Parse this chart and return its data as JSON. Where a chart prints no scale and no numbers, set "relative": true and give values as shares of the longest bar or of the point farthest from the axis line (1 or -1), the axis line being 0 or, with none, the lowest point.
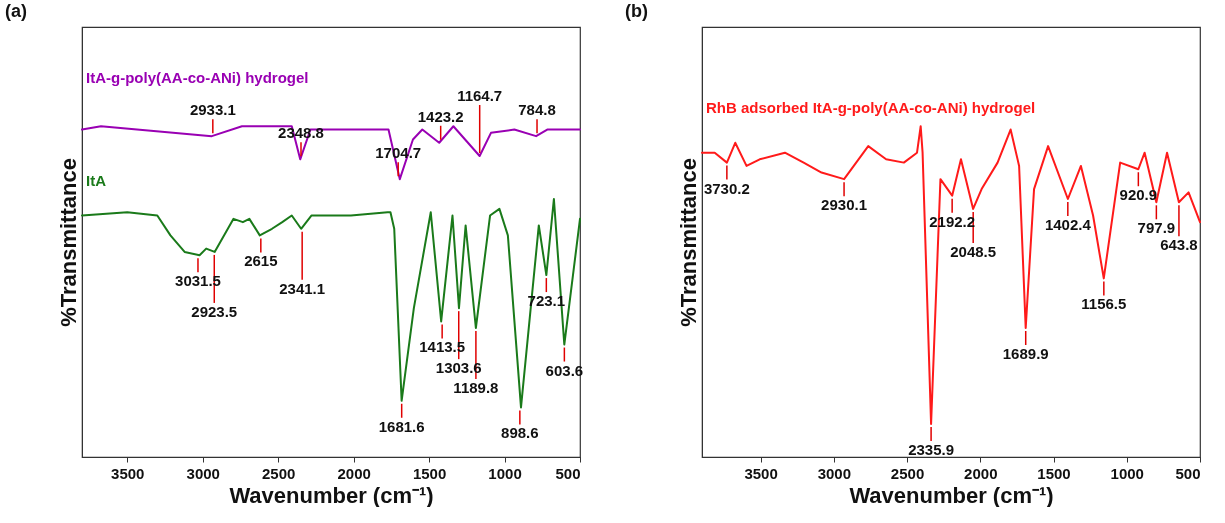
{
  "chart_data": [
    {
      "type": "line",
      "title": "(a)",
      "xlabel": "Wavenumber (cm⁻¹)",
      "ylabel": "%Transmittance",
      "relative": true,
      "tick_labels": "x",
      "xlim": [
        3800,
        500
      ],
      "xticks": [
        3500,
        3000,
        2500,
        2000,
        1500,
        1000,
        500
      ],
      "series": [
        {
          "name": "ItA-g-poly(AA-co-ANi) hydrogel",
          "color": "#9900b3",
          "x": [
            3800,
            3674,
            2940,
            2740,
            2410,
            2354,
            2286,
            1806,
            1769,
            1694,
            1607,
            1545,
            1433,
            1339,
            1165,
            1090,
            935,
            791,
            717,
            500
          ],
          "values": [
            0.99,
            1,
            0.97,
            1,
            1,
            0.9,
            0.99,
            0.99,
            0.99,
            0.84,
            0.96,
            0.99,
            0.95,
            1,
            0.91,
            0.98,
            0.99,
            0.97,
            0.99,
            0.99
          ]
        },
        {
          "name": "ItA",
          "color": "#1a7a1a",
          "x": [
            3800,
            3500,
            3301,
            3214,
            3120,
            3021,
            2977,
            2921,
            2796,
            2734,
            2691,
            2622,
            2541,
            2473,
            2410,
            2348,
            2280,
            2018,
            1775,
            1756,
            1731,
            1682,
            1601,
            1489,
            1420,
            1345,
            1302,
            1258,
            1190,
            1096,
            1034,
            978,
            891,
            773,
            723,
            673,
            604,
            500
          ],
          "values": [
            0.73,
            0.74,
            0.73,
            0.67,
            0.62,
            0.61,
            0.63,
            0.62,
            0.72,
            0.71,
            0.72,
            0.67,
            0.69,
            0.71,
            0.73,
            0.69,
            0.73,
            0.73,
            0.74,
            0.74,
            0.69,
            0.17,
            0.45,
            0.74,
            0.41,
            0.73,
            0.45,
            0.7,
            0.39,
            0.73,
            0.75,
            0.67,
            0.15,
            0.7,
            0.55,
            0.78,
            0.34,
            0.72
          ]
        }
      ],
      "annotations": [
        {
          "text": "2933.1",
          "x": 2933.1,
          "y": 0.97
        },
        {
          "text": "2348.8",
          "x": 2348.8,
          "y": 0.9
        },
        {
          "text": "1704.7",
          "x": 1704.7,
          "y": 0.84
        },
        {
          "text": "1423.2",
          "x": 1423.2,
          "y": 0.95
        },
        {
          "text": "1164.7",
          "x": 1164.7,
          "y": 0.91
        },
        {
          "text": "784.8",
          "x": 784.8,
          "y": 0.97
        },
        {
          "text": "3031.5",
          "x": 3031.5,
          "y": 0.61
        },
        {
          "text": "2923.5",
          "x": 2923.5,
          "y": 0.62
        },
        {
          "text": "2615",
          "x": 2615,
          "y": 0.67
        },
        {
          "text": "2341.1",
          "x": 2341.1,
          "y": 0.69
        },
        {
          "text": "1681.6",
          "x": 1681.6,
          "y": 0.17
        },
        {
          "text": "1413.5",
          "x": 1413.5,
          "y": 0.41
        },
        {
          "text": "1303.6",
          "x": 1303.6,
          "y": 0.45
        },
        {
          "text": "1189.8",
          "x": 1189.8,
          "y": 0.39
        },
        {
          "text": "898.6",
          "x": 898.6,
          "y": 0.15
        },
        {
          "text": "723.1",
          "x": 723.1,
          "y": 0.55
        },
        {
          "text": "603.6",
          "x": 603.6,
          "y": 0.34
        }
      ]
    },
    {
      "type": "line",
      "title": "(b)",
      "xlabel": "Wavenumber (cm⁻¹)",
      "ylabel": "%Transmittance",
      "relative": true,
      "tick_labels": "x",
      "xlim": [
        3900,
        500
      ],
      "xticks": [
        3500,
        3000,
        2500,
        2000,
        1500,
        1000,
        500
      ],
      "series": [
        {
          "name": "RhB adsorbed ItA-g-poly(AA-co-ANi) hydrogel",
          "color": "#ff1a1a",
          "x": [
            3900,
            3813,
            3730,
            3673,
            3596,
            3506,
            3334,
            3206,
            3084,
            2930,
            2765,
            2643,
            2522,
            2432,
            2407,
            2394,
            2336,
            2272,
            2192,
            2132,
            2049,
            1991,
            1882,
            1793,
            1735,
            1690,
            1633,
            1537,
            1402,
            1313,
            1230,
            1157,
            1045,
            921,
            878,
            798,
            725,
            644,
            578,
            500
          ],
          "values": [
            0.92,
            0.92,
            0.89,
            0.95,
            0.88,
            0.9,
            0.92,
            0.89,
            0.86,
            0.84,
            0.94,
            0.9,
            0.89,
            0.92,
            1,
            0.92,
            0.1,
            0.84,
            0.79,
            0.9,
            0.75,
            0.81,
            0.89,
            0.99,
            0.88,
            0.39,
            0.81,
            0.94,
            0.78,
            0.88,
            0.73,
            0.54,
            0.89,
            0.87,
            0.92,
            0.77,
            0.92,
            0.77,
            0.8,
            0.71
          ]
        }
      ],
      "annotations": [
        {
          "text": "3730.2",
          "x": 3730.2,
          "y": 0.89
        },
        {
          "text": "2930.1",
          "x": 2930.1,
          "y": 0.84
        },
        {
          "text": "2335.9",
          "x": 2335.9,
          "y": 0.1
        },
        {
          "text": "2192.2",
          "x": 2192.2,
          "y": 0.79
        },
        {
          "text": "2048.5",
          "x": 2048.5,
          "y": 0.75
        },
        {
          "text": "1689.9",
          "x": 1689.9,
          "y": 0.39
        },
        {
          "text": "1402.4",
          "x": 1402.4,
          "y": 0.78
        },
        {
          "text": "1156.5",
          "x": 1156.5,
          "y": 0.54
        },
        {
          "text": "920.9",
          "x": 920.9,
          "y": 0.87
        },
        {
          "text": "797.9",
          "x": 797.9,
          "y": 0.77
        },
        {
          "text": "643.8",
          "x": 643.8,
          "y": 0.77
        }
      ]
    }
  ]
}
